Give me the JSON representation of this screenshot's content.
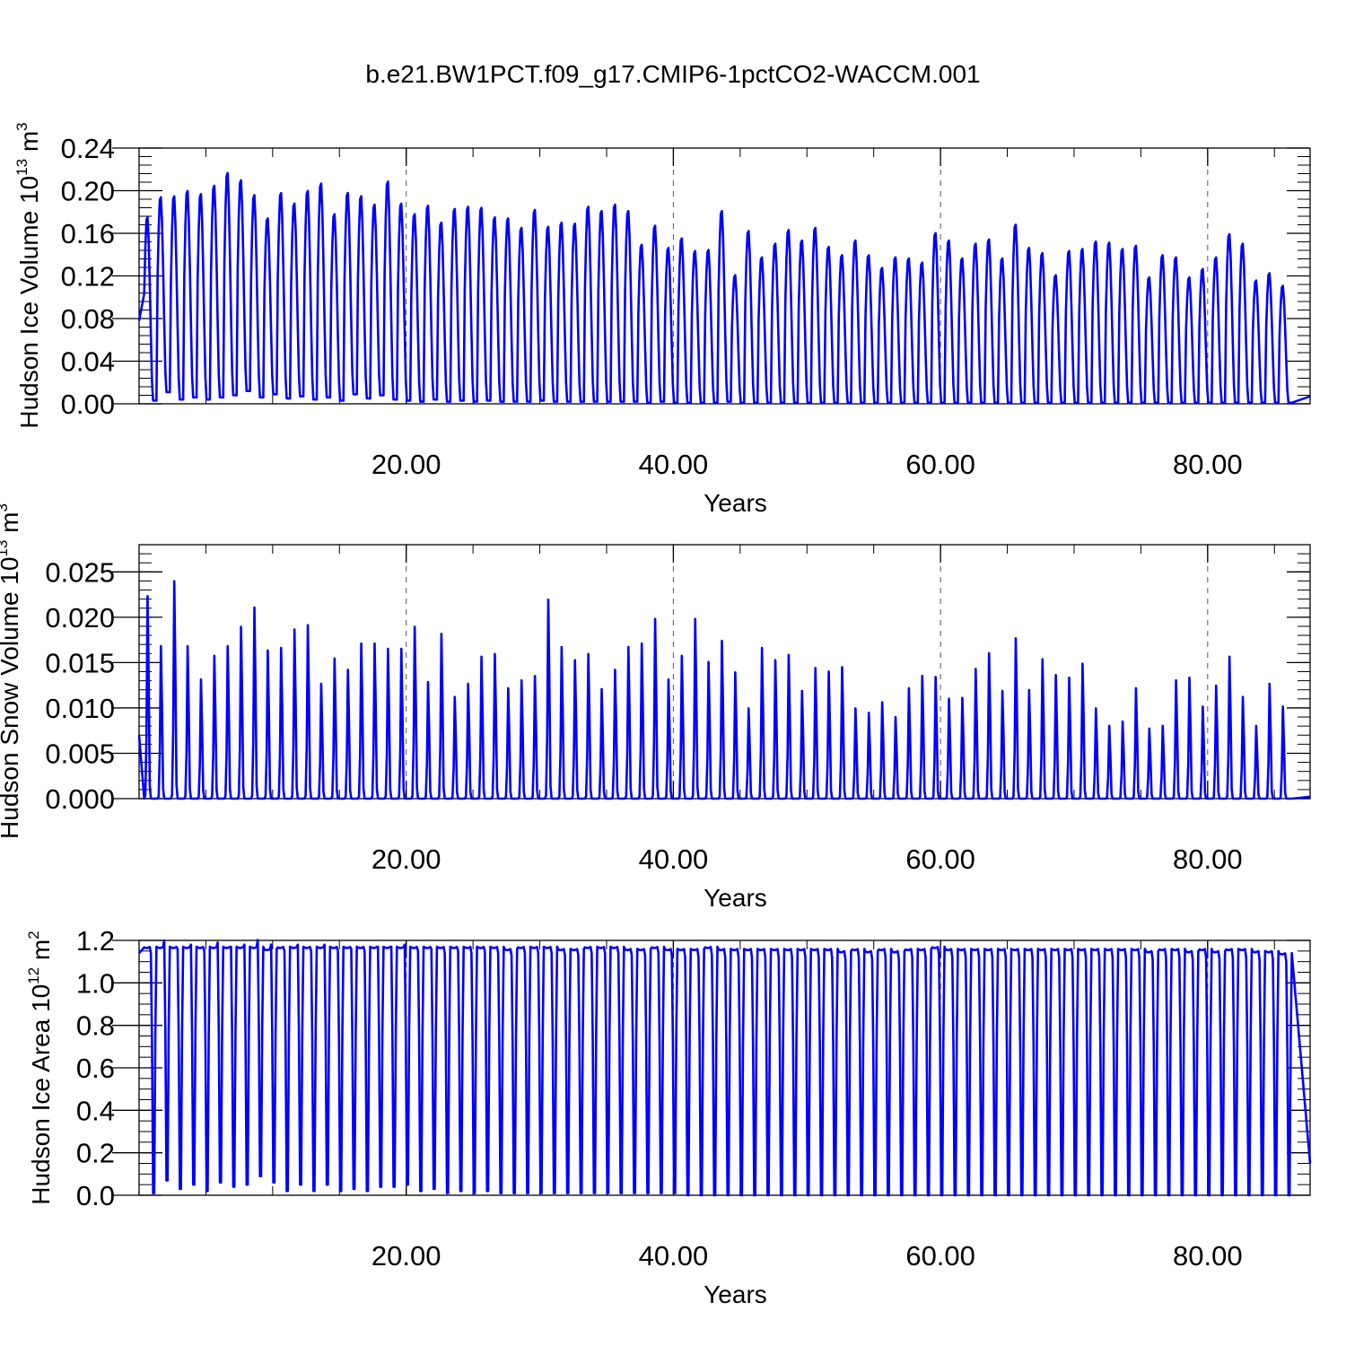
{
  "title": "b.e21.BW1PCT.f09_g17.CMIP6-1pctCO2-WACCM.001",
  "colors": {
    "line": "#0000ff",
    "axis": "#000000",
    "grid": "#555555"
  },
  "chart_data": [
    {
      "type": "line",
      "ylabel": {
        "main": "Hudson Ice Volume 10",
        "exp": "13",
        "unit": " m",
        "unit_exp": "3"
      },
      "xlabel": "Years",
      "xlim": [
        0,
        87.67
      ],
      "ylim": [
        0,
        0.24
      ],
      "xticks": [
        {
          "v": 20,
          "label": "20.00"
        },
        {
          "v": 40,
          "label": "40.00"
        },
        {
          "v": 60,
          "label": "60.00"
        },
        {
          "v": 80,
          "label": "80.00"
        }
      ],
      "yticks": [
        {
          "v": 0,
          "label": "0.00"
        },
        {
          "v": 0.04,
          "label": "0.04"
        },
        {
          "v": 0.08,
          "label": "0.08"
        },
        {
          "v": 0.12,
          "label": "0.12"
        },
        {
          "v": 0.16,
          "label": "0.16"
        },
        {
          "v": 0.2,
          "label": "0.20"
        },
        {
          "v": 0.24,
          "label": "0.24"
        }
      ],
      "grid_x": [
        20,
        40,
        60,
        80
      ],
      "start_value": 0.078,
      "end_value": 0.007,
      "annual_peaks": [
        0.177,
        0.196,
        0.197,
        0.202,
        0.199,
        0.207,
        0.219,
        0.212,
        0.198,
        0.176,
        0.2,
        0.19,
        0.202,
        0.209,
        0.18,
        0.2,
        0.197,
        0.189,
        0.211,
        0.19,
        0.18,
        0.188,
        0.172,
        0.185,
        0.187,
        0.186,
        0.177,
        0.176,
        0.167,
        0.184,
        0.168,
        0.172,
        0.171,
        0.187,
        0.183,
        0.189,
        0.183,
        0.151,
        0.169,
        0.148,
        0.157,
        0.145,
        0.146,
        0.183,
        0.122,
        0.164,
        0.139,
        0.152,
        0.165,
        0.155,
        0.167,
        0.149,
        0.141,
        0.155,
        0.141,
        0.129,
        0.139,
        0.138,
        0.134,
        0.162,
        0.155,
        0.138,
        0.152,
        0.156,
        0.138,
        0.17,
        0.148,
        0.143,
        0.122,
        0.145,
        0.147,
        0.154,
        0.153,
        0.147,
        0.15,
        0.12,
        0.141,
        0.139,
        0.12,
        0.128,
        0.139,
        0.161,
        0.152,
        0.117,
        0.124,
        0.112
      ],
      "annual_minima": [
        0.003,
        0.011,
        0.004,
        0.006,
        0.004,
        0.006,
        0.008,
        0.012,
        0.006,
        0.009,
        0.005,
        0.007,
        0.004,
        0.006,
        0.003,
        0.009,
        0.005,
        0.008,
        0.004,
        0.003,
        0.002,
        0.004,
        0.002,
        0.003,
        0.002,
        0.003,
        0.002,
        0.002,
        0.002,
        0.003,
        0.002,
        0.002,
        0.002,
        0.002,
        0.002,
        0.002,
        0.002,
        0.001,
        0.002,
        0.001,
        0.001,
        0.001,
        0.001,
        0.002,
        0.001,
        0.001,
        0.001,
        0.001,
        0.001,
        0.001,
        0.001,
        0.001,
        0.001,
        0.001,
        0.001,
        0.001,
        0.001,
        0.001,
        0.001,
        0.001,
        0.001,
        0.001,
        0.001,
        0.001,
        0.001,
        0.001,
        0.001,
        0.001,
        0.001,
        0.001,
        0.001,
        0.001,
        0.001,
        0.001,
        0.001,
        0.001,
        0.001,
        0.001,
        0.001,
        0.001,
        0.001,
        0.001,
        0.001,
        0.001,
        0.001,
        0.001
      ]
    },
    {
      "type": "line",
      "ylabel": {
        "main": "Hudson Snow Volume 10",
        "exp": "13",
        "unit": " m",
        "unit_exp": "3"
      },
      "xlabel": "Years",
      "xlim": [
        0,
        87.67
      ],
      "ylim": [
        0,
        0.028
      ],
      "xticks": [
        {
          "v": 20,
          "label": "20.00"
        },
        {
          "v": 40,
          "label": "40.00"
        },
        {
          "v": 60,
          "label": "60.00"
        },
        {
          "v": 80,
          "label": "80.00"
        }
      ],
      "yticks": [
        {
          "v": 0,
          "label": "0.000"
        },
        {
          "v": 0.005,
          "label": "0.005"
        },
        {
          "v": 0.01,
          "label": "0.010"
        },
        {
          "v": 0.015,
          "label": "0.015"
        },
        {
          "v": 0.02,
          "label": "0.020"
        },
        {
          "v": 0.025,
          "label": "0.025"
        }
      ],
      "grid_x": [
        20,
        40,
        60,
        80
      ],
      "start_value": 0.007,
      "end_value": 0.0002,
      "annual_peaks": [
        0.0231,
        0.0174,
        0.0248,
        0.0174,
        0.0136,
        0.0163,
        0.0174,
        0.0196,
        0.0218,
        0.0169,
        0.0172,
        0.0193,
        0.0198,
        0.0131,
        0.016,
        0.0147,
        0.0177,
        0.0177,
        0.0171,
        0.0171,
        0.0196,
        0.0133,
        0.0188,
        0.0116,
        0.0131,
        0.0162,
        0.0165,
        0.0126,
        0.0135,
        0.014,
        0.0227,
        0.0173,
        0.0158,
        0.0165,
        0.0125,
        0.0147,
        0.0173,
        0.0177,
        0.0205,
        0.0136,
        0.0163,
        0.0205,
        0.0156,
        0.018,
        0.0144,
        0.0103,
        0.0172,
        0.0158,
        0.0164,
        0.0123,
        0.0149,
        0.0145,
        0.015,
        0.0103,
        0.0098,
        0.011,
        0.0093,
        0.0126,
        0.014,
        0.0139,
        0.0114,
        0.0115,
        0.0148,
        0.0166,
        0.0123,
        0.0183,
        0.0124,
        0.0159,
        0.0141,
        0.0138,
        0.0154,
        0.0103,
        0.0083,
        0.0088,
        0.0126,
        0.008,
        0.0083,
        0.0135,
        0.0138,
        0.0105,
        0.0129,
        0.0162,
        0.0116,
        0.0083,
        0.0131,
        0.0105
      ],
      "annual_minima": []
    },
    {
      "type": "line",
      "ylabel": {
        "main": "Hudson Ice Area 10",
        "exp": "12",
        "unit": " m",
        "unit_exp": "2"
      },
      "xlabel": "Years",
      "xlim": [
        0,
        87.67
      ],
      "ylim": [
        0,
        1.2
      ],
      "xticks": [
        {
          "v": 20,
          "label": "20.00"
        },
        {
          "v": 40,
          "label": "40.00"
        },
        {
          "v": 60,
          "label": "60.00"
        },
        {
          "v": 80,
          "label": "80.00"
        }
      ],
      "yticks": [
        {
          "v": 0,
          "label": "0.0"
        },
        {
          "v": 0.2,
          "label": "0.2"
        },
        {
          "v": 0.4,
          "label": "0.4"
        },
        {
          "v": 0.6,
          "label": "0.6"
        },
        {
          "v": 0.8,
          "label": "0.8"
        },
        {
          "v": 1.0,
          "label": "1.0"
        },
        {
          "v": 1.2,
          "label": "1.2"
        }
      ],
      "grid_x": [
        20,
        40,
        60,
        80
      ],
      "start_value": 1.14,
      "end_value": 0.15,
      "annual_peaks": [
        1.17,
        1.17,
        1.17,
        1.17,
        1.17,
        1.17,
        1.17,
        1.17,
        1.17,
        1.16,
        1.17,
        1.17,
        1.17,
        1.17,
        1.17,
        1.17,
        1.17,
        1.17,
        1.17,
        1.17,
        1.17,
        1.17,
        1.17,
        1.17,
        1.17,
        1.17,
        1.17,
        1.16,
        1.17,
        1.17,
        1.17,
        1.16,
        1.16,
        1.17,
        1.17,
        1.17,
        1.16,
        1.16,
        1.17,
        1.16,
        1.16,
        1.16,
        1.17,
        1.16,
        1.16,
        1.16,
        1.16,
        1.16,
        1.16,
        1.16,
        1.16,
        1.16,
        1.15,
        1.16,
        1.15,
        1.16,
        1.15,
        1.16,
        1.16,
        1.17,
        1.16,
        1.16,
        1.16,
        1.16,
        1.16,
        1.16,
        1.16,
        1.16,
        1.16,
        1.16,
        1.16,
        1.16,
        1.16,
        1.16,
        1.16,
        1.15,
        1.16,
        1.16,
        1.15,
        1.16,
        1.15,
        1.16,
        1.16,
        1.15,
        1.15,
        1.14
      ],
      "annual_minima": [
        0.01,
        0.07,
        0.03,
        0.05,
        0.02,
        0.06,
        0.04,
        0.05,
        0.09,
        0.06,
        0.02,
        0.05,
        0.02,
        0.05,
        0.02,
        0.03,
        0.02,
        0.04,
        0.04,
        0.05,
        0.02,
        0.03,
        0.01,
        0.02,
        0.01,
        0.02,
        0.01,
        0.01,
        0.01,
        0.01,
        0.01,
        0.01,
        0.01,
        0.01,
        0.01,
        0.01,
        0.01,
        0.01,
        0.01,
        0.01,
        0.0,
        0.0,
        0.0,
        0.0,
        0.0,
        0.0,
        0.0,
        0.0,
        0.0,
        0.0,
        0.0,
        0.0,
        0.0,
        0.0,
        0.0,
        0.0,
        0.0,
        0.0,
        0.0,
        0.0,
        0.0,
        0.0,
        0.0,
        0.0,
        0.0,
        0.0,
        0.0,
        0.0,
        0.0,
        0.0,
        0.0,
        0.0,
        0.0,
        0.0,
        0.0,
        0.0,
        0.0,
        0.0,
        0.0,
        0.0,
        0.0,
        0.0,
        0.0,
        0.0,
        0.0,
        0.0
      ]
    }
  ]
}
